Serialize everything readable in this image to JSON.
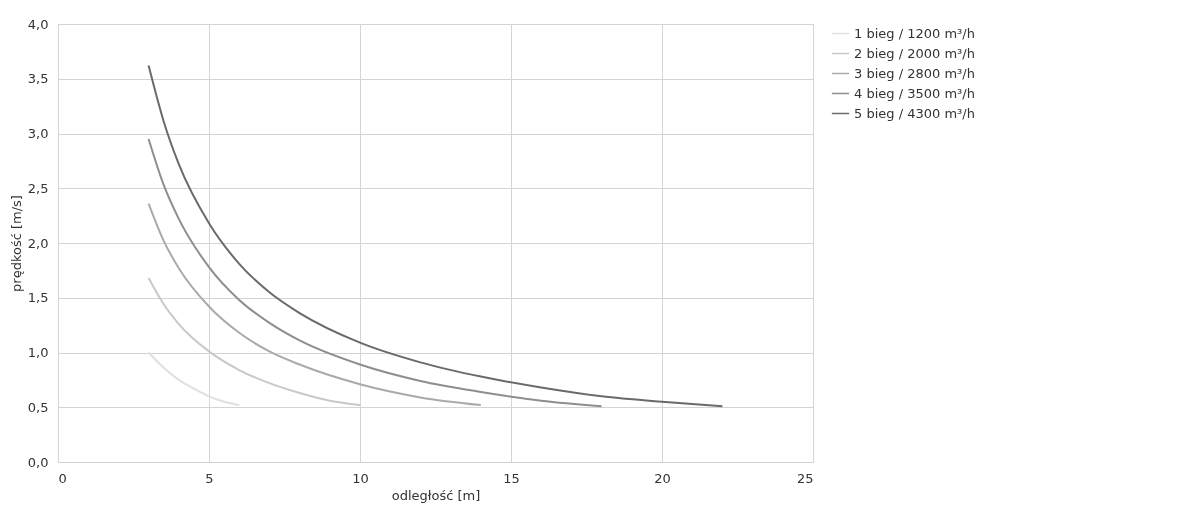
{
  "chart_data": {
    "type": "line",
    "xlabel": "odległość [m]",
    "ylabel": "prędkość [m/s]",
    "xlim": [
      0,
      25
    ],
    "xticks": [
      0,
      5,
      10,
      15,
      20,
      25
    ],
    "ylim": [
      0,
      4
    ],
    "yticks": [
      {
        "value": 0,
        "label": "0,0"
      },
      {
        "value": 0.5,
        "label": "0,5"
      },
      {
        "value": 1,
        "label": "1,0"
      },
      {
        "value": 1.5,
        "label": "1,5"
      },
      {
        "value": 2,
        "label": "2,0"
      },
      {
        "value": 2.5,
        "label": "2,5"
      },
      {
        "value": 3,
        "label": "3,0"
      },
      {
        "value": 3.5,
        "label": "3,5"
      },
      {
        "value": 4,
        "label": "4,0"
      }
    ],
    "grid": true,
    "legend": "right",
    "marker": "none",
    "line_style": "solid",
    "series": [
      {
        "name": "1 bieg / 1200 m³/h",
        "color": "#e0e0e0",
        "x": [
          3,
          3.5,
          4,
          4.5,
          5,
          5.5,
          6
        ],
        "values": [
          1.0,
          0.86,
          0.75,
          0.67,
          0.6,
          0.55,
          0.52
        ]
      },
      {
        "name": "2 bieg / 2000 m³/h",
        "color": "#c8c8c8",
        "x": [
          3,
          3.5,
          4,
          5,
          6,
          7,
          8,
          9,
          10
        ],
        "values": [
          1.68,
          1.44,
          1.26,
          1.01,
          0.84,
          0.72,
          0.63,
          0.56,
          0.52
        ]
      },
      {
        "name": "3 bieg / 2800 m³/h",
        "color": "#aaaaaa",
        "x": [
          3,
          3.5,
          4,
          5,
          6,
          7,
          8,
          10,
          12,
          14
        ],
        "values": [
          2.36,
          2.02,
          1.77,
          1.42,
          1.18,
          1.01,
          0.89,
          0.71,
          0.59,
          0.52
        ]
      },
      {
        "name": "4 bieg / 3500 m³/h",
        "color": "#8e8e8e",
        "x": [
          3,
          3.5,
          4,
          5,
          6,
          7,
          8,
          10,
          12,
          14,
          16,
          18
        ],
        "values": [
          2.95,
          2.53,
          2.22,
          1.78,
          1.48,
          1.27,
          1.11,
          0.89,
          0.74,
          0.64,
          0.56,
          0.51
        ]
      },
      {
        "name": "5 bieg / 4300 m³/h",
        "color": "#6a6a6a",
        "x": [
          3,
          3.5,
          4,
          5,
          6,
          7,
          8,
          10,
          12,
          14,
          16,
          18,
          20,
          22
        ],
        "values": [
          3.62,
          3.11,
          2.72,
          2.18,
          1.81,
          1.55,
          1.36,
          1.09,
          0.91,
          0.78,
          0.68,
          0.6,
          0.55,
          0.51
        ]
      }
    ]
  }
}
